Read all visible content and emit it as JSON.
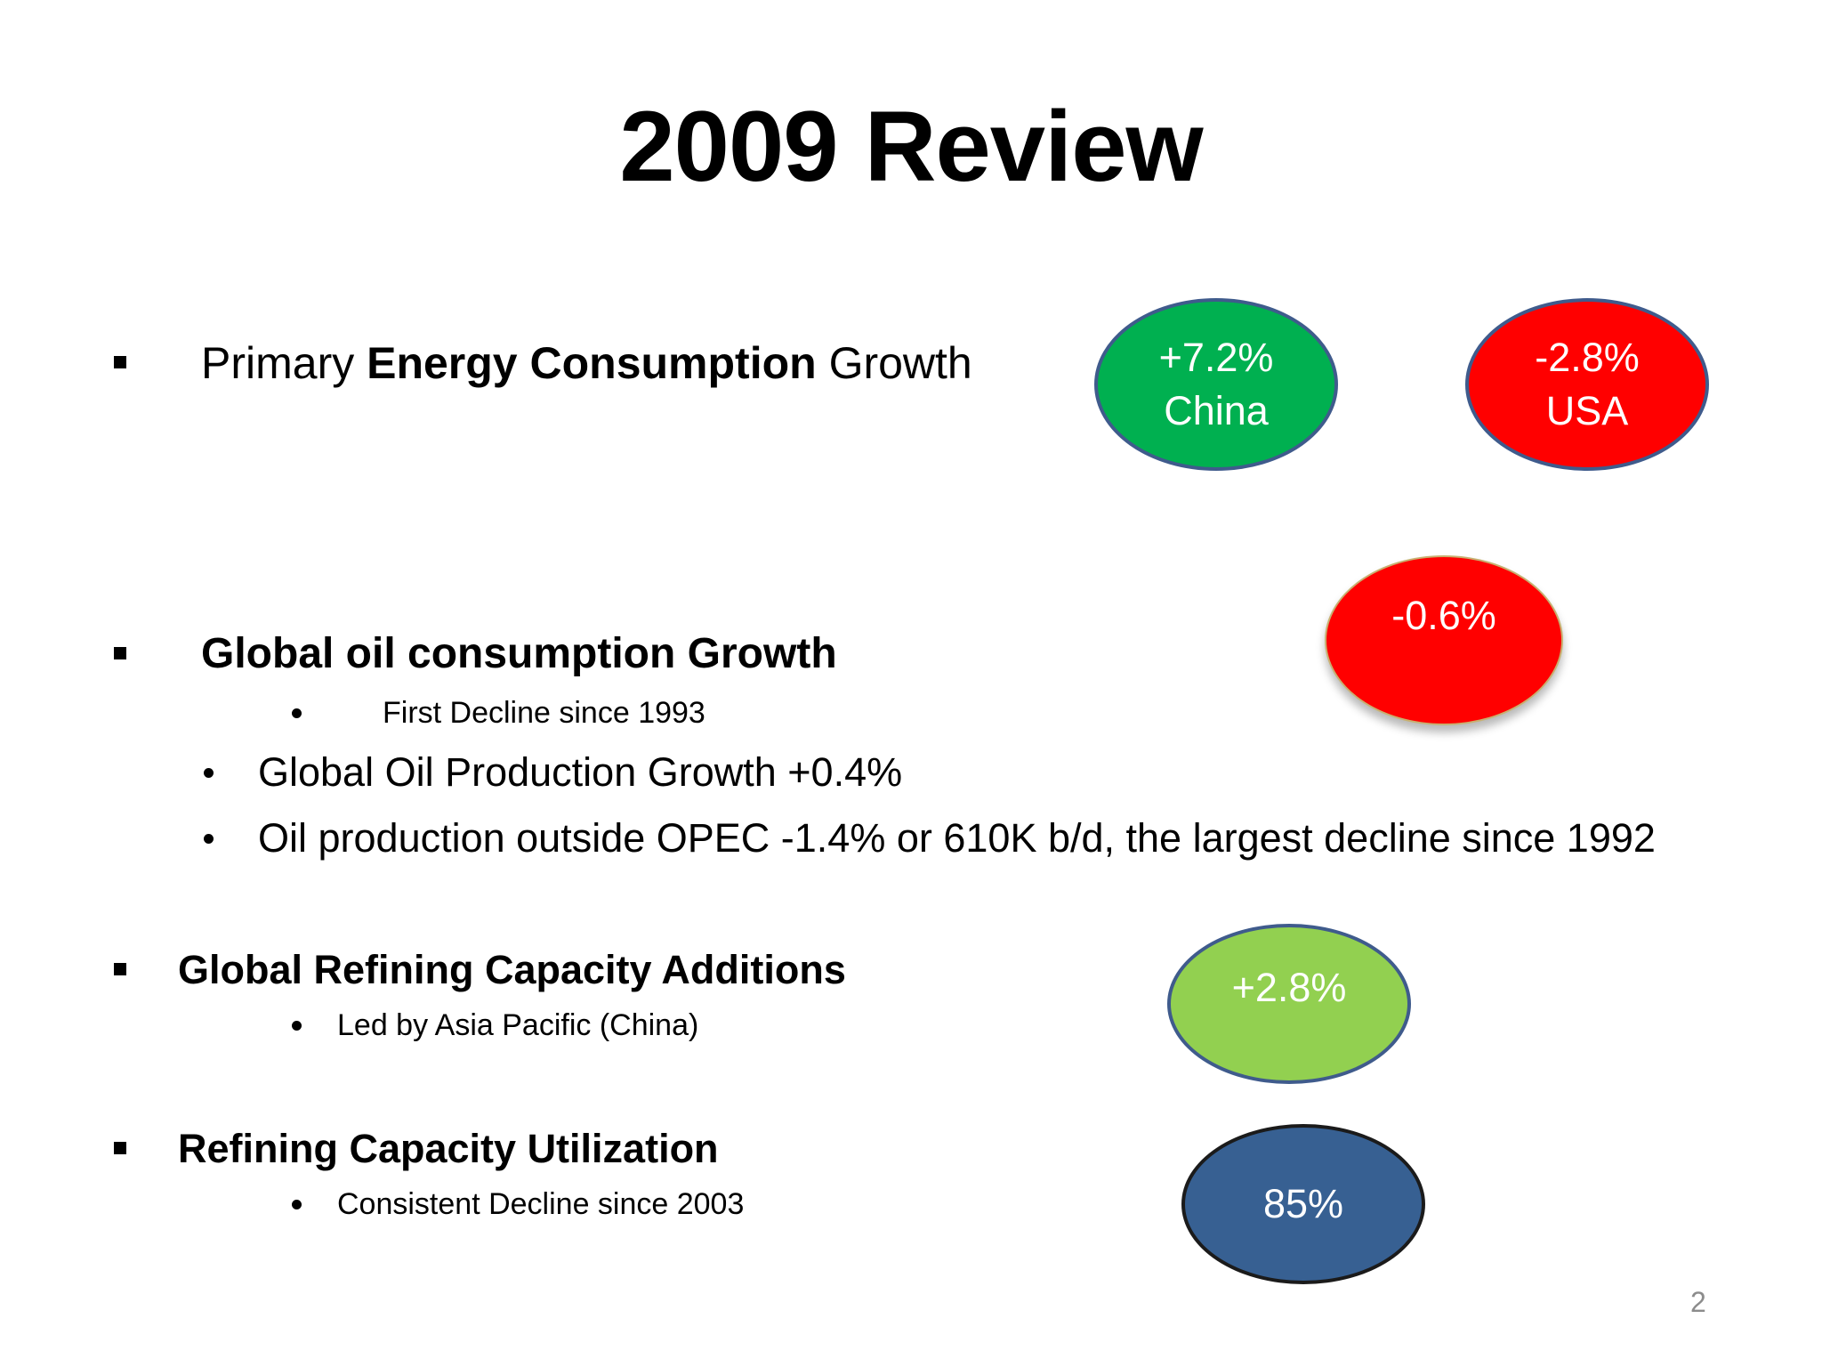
{
  "slide": {
    "title": "2009 Review",
    "page_number": "2"
  },
  "bullets": {
    "energy": {
      "pre": "Primary ",
      "bold": "Energy Consumption",
      "post": " Growth"
    },
    "oil": {
      "label": "Global oil consumption Growth",
      "sub": "First Decline since 1993",
      "items": [
        "Global Oil Production Growth +0.4%",
        "Oil production outside OPEC -1.4% or 610K b/d, the largest decline since 1992"
      ]
    },
    "refining": {
      "label": "Global Refining Capacity Additions",
      "sub": "Led by Asia Pacific (China)"
    },
    "utilization": {
      "label": "Refining Capacity Utilization",
      "sub": "Consistent Decline since 2003"
    }
  },
  "badges": {
    "china": {
      "value": "+7.2%",
      "label": "China",
      "color": "#00b050"
    },
    "usa": {
      "value": "-2.8%",
      "label": "USA",
      "color": "#ff0000"
    },
    "oil_consumption": {
      "value": "-0.6%",
      "color": "#ff0000"
    },
    "refining": {
      "value": "+2.8%",
      "color": "#92d050"
    },
    "utilization": {
      "value": "85%",
      "color": "#376092"
    }
  }
}
